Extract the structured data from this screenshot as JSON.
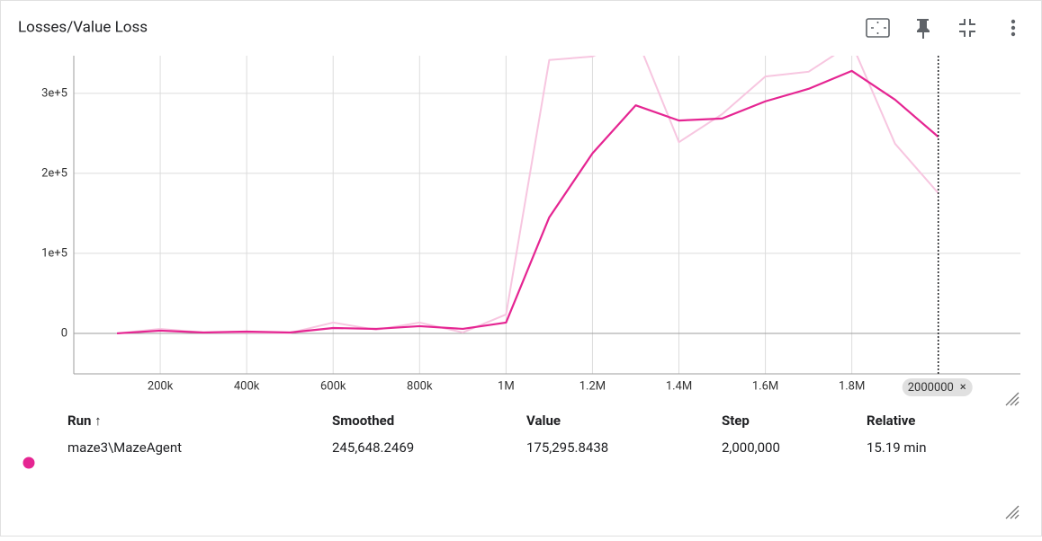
{
  "header": {
    "title": "Losses/Value Loss"
  },
  "chart_data": {
    "type": "line",
    "xlim": [
      0,
      2190000
    ],
    "ylim": [
      -50600,
      347000
    ],
    "xticks": [
      {
        "value": 200000,
        "label": "200k"
      },
      {
        "value": 400000,
        "label": "400k"
      },
      {
        "value": 600000,
        "label": "600k"
      },
      {
        "value": 800000,
        "label": "800k"
      },
      {
        "value": 1000000,
        "label": "1M"
      },
      {
        "value": 1200000,
        "label": "1.2M"
      },
      {
        "value": 1400000,
        "label": "1.4M"
      },
      {
        "value": 1600000,
        "label": "1.6M"
      },
      {
        "value": 1800000,
        "label": "1.8M"
      }
    ],
    "yticks": [
      0,
      {
        "value": 100000,
        "label": "1e+5"
      },
      {
        "value": 200000,
        "label": "2e+5"
      },
      {
        "value": 300000,
        "label": "3e+5"
      }
    ],
    "grid": true,
    "x": [
      100000,
      200000,
      300000,
      400000,
      500000,
      600000,
      700000,
      800000,
      900000,
      1000000,
      1100000,
      1200000,
      1300000,
      1400000,
      1500000,
      1600000,
      1700000,
      1800000,
      1900000,
      2000000
    ],
    "series": [
      {
        "color": "#f7c6e0",
        "values": [
          0,
          5600,
          1000,
          1100,
          500,
          13500,
          4500,
          13500,
          1100,
          23600,
          341600,
          346000,
          372000,
          239000,
          274000,
          321000,
          327000,
          362000,
          237000,
          175295.8438
        ]
      },
      {
        "color": "#e52592",
        "values": [
          0,
          3400,
          1100,
          2200,
          1100,
          6700,
          5600,
          9000,
          5600,
          13500,
          145000,
          225000,
          285000,
          266000,
          268500,
          290000,
          305600,
          328000,
          292000,
          245648.2469
        ]
      }
    ],
    "hover": {
      "x": 2000000,
      "close": "×"
    }
  },
  "table": {
    "columns": [
      "Run ↑",
      "Smoothed",
      "Value",
      "Step",
      "Relative"
    ],
    "rows": [
      [
        "maze3\\MazeAgent",
        "245,648.2469",
        "175,295.8438",
        "2,000,000",
        "15.19 min"
      ]
    ],
    "row_color": "#e52592"
  }
}
